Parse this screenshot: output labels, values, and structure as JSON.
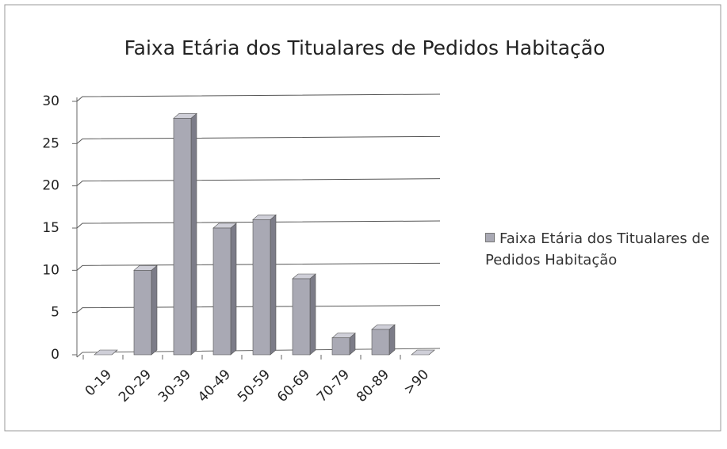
{
  "chart_data": {
    "type": "bar",
    "title": "Faixa Etária dos Titualares de Pedidos Habitação",
    "categories": [
      "0-19",
      "20-29",
      "30-39",
      "40-49",
      "50-59",
      "60-69",
      "70-79",
      "80-89",
      ">90"
    ],
    "series": [
      {
        "name": "Faixa Etária dos Titualares de Pedidos Habitação",
        "color": "#a9a9b4",
        "values": [
          0,
          10,
          28,
          15,
          16,
          9,
          2,
          3,
          0
        ]
      }
    ],
    "ylim": [
      0,
      30
    ],
    "yticks": [
      0,
      5,
      10,
      15,
      20,
      25,
      30
    ],
    "grid": true,
    "legend": "right"
  }
}
